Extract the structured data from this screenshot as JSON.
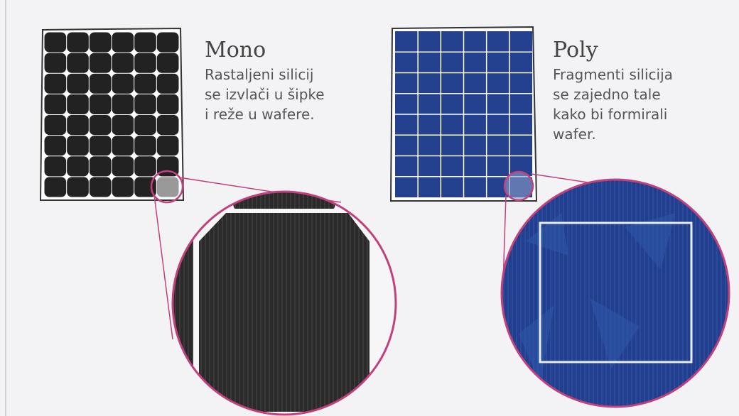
{
  "mono": {
    "title": "Mono",
    "lines": [
      "Rastaljeni silicij",
      "se izvlači u šipke",
      "i reže u wafere."
    ]
  },
  "poly": {
    "title": "Poly",
    "lines": [
      "Fragmenti silicija",
      "se zajedno tale",
      "kako bi formirali",
      "wafer."
    ]
  }
}
